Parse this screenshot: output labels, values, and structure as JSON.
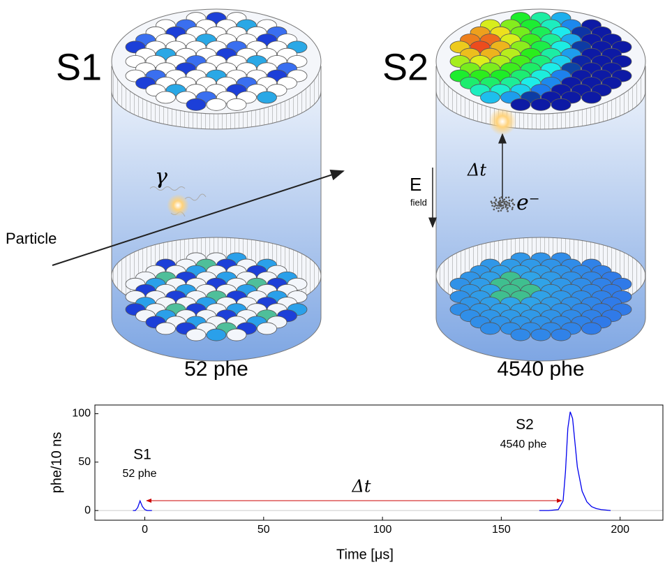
{
  "diagram": {
    "left_label": "S1",
    "left_count": "52 phe",
    "right_label": "S2",
    "right_count": "4540 phe",
    "particle": "Particle",
    "gamma": "γ",
    "efield": "E",
    "efield_sub": "field",
    "delta_t": "Δt",
    "electron": "e⁻"
  },
  "chart_data": {
    "type": "line",
    "xlabel": "Time [μs]",
    "ylabel": "phe/10 ns",
    "xlim": [
      -21,
      218
    ],
    "ylim": [
      -10,
      109
    ],
    "xticks": [
      0,
      50,
      100,
      150,
      200
    ],
    "yticks": [
      0,
      50,
      100
    ],
    "x": [
      -5,
      -4,
      -3,
      -2,
      -1,
      0,
      1,
      2,
      3,
      50,
      166,
      170,
      174,
      176,
      177,
      178,
      179,
      180,
      181,
      182,
      184,
      186,
      188,
      190,
      192,
      196
    ],
    "series": [
      {
        "color": "#0000ee",
        "values": [
          0,
          0,
          3,
          10,
          4,
          1,
          0,
          0,
          0,
          null,
          0,
          0,
          1,
          10,
          40,
          85,
          102,
          95,
          70,
          45,
          20,
          9,
          4,
          2,
          1,
          0
        ]
      }
    ],
    "annotations": {
      "s1_label": "S1",
      "s1_count": "52 phe",
      "s2_label": "S2",
      "s2_count": "4540 phe",
      "delta_t": "Δt"
    }
  }
}
